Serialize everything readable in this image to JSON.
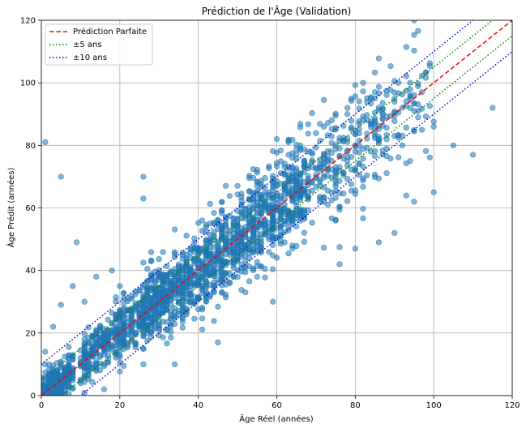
{
  "chart_data": {
    "type": "scatter",
    "title": "Prédiction de l'Âge (Validation)",
    "xlabel": "Âge Réel (années)",
    "ylabel": "Âge Prédit (années)",
    "xlim": [
      0,
      120
    ],
    "ylim": [
      0,
      120
    ],
    "xticks": [
      0,
      20,
      40,
      60,
      80,
      100,
      120
    ],
    "yticks": [
      0,
      20,
      40,
      60,
      80,
      100,
      120
    ],
    "grid": true,
    "legend_position": "top-left",
    "colors": {
      "points": "#1f77b4",
      "perfect": "#ff0000",
      "band5": "#008000",
      "band10": "#0000cc"
    },
    "lines": [
      {
        "name": "Prédiction Parfaite",
        "style": "dashed",
        "color": "#ff0000",
        "offset": 0
      },
      {
        "name": "±5 ans",
        "style": "dotted",
        "color": "#008000",
        "offset": 5
      },
      {
        "name": "±10 ans",
        "style": "dotted",
        "color": "#0000cc",
        "offset": 10
      }
    ],
    "points": [
      [
        1,
        81
      ],
      [
        5,
        70
      ],
      [
        26,
        70
      ],
      [
        9,
        49
      ],
      [
        26,
        63
      ],
      [
        82,
        100
      ],
      [
        91,
        100
      ],
      [
        115,
        92
      ],
      [
        105,
        80
      ],
      [
        110,
        77
      ],
      [
        100,
        65
      ],
      [
        95,
        62
      ],
      [
        86,
        49
      ],
      [
        90,
        52
      ],
      [
        80,
        47
      ],
      [
        76,
        42
      ],
      [
        59,
        30
      ],
      [
        45,
        17
      ],
      [
        34,
        10
      ],
      [
        26,
        10
      ],
      [
        16,
        2
      ],
      [
        4,
        2
      ],
      [
        2,
        1
      ],
      [
        1,
        0
      ],
      [
        1,
        14
      ],
      [
        3,
        22
      ],
      [
        5,
        29
      ],
      [
        8,
        35
      ],
      [
        11,
        30
      ],
      [
        14,
        38
      ],
      [
        18,
        40
      ],
      [
        20,
        35
      ],
      [
        60,
        82
      ],
      [
        63,
        81
      ],
      [
        66,
        80
      ],
      [
        68,
        78
      ],
      [
        72,
        86
      ],
      [
        74,
        88
      ],
      [
        78,
        92
      ],
      [
        83,
        88
      ],
      [
        85,
        95
      ],
      [
        87,
        90
      ],
      [
        90,
        83
      ],
      [
        92,
        80
      ],
      [
        95,
        91
      ],
      [
        97,
        85
      ],
      [
        100,
        86
      ],
      [
        94,
        75
      ]
    ],
    "cloud_seed": 17,
    "cloud_count": 2200
  }
}
